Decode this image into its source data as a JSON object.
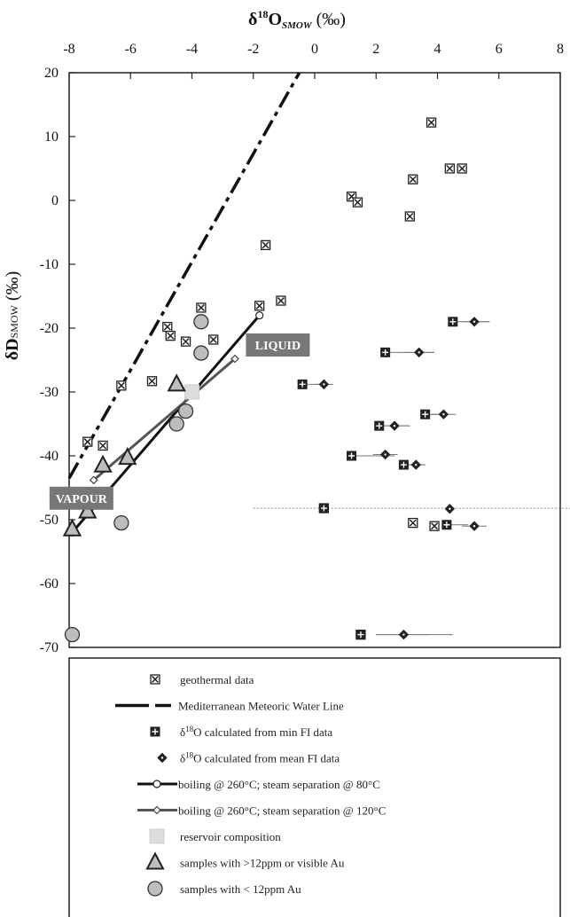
{
  "chart_data": {
    "type": "scatter",
    "xlabel": {
      "main": "δ",
      "sup": "18",
      "main2": "O",
      "sub": "SMOW",
      "unit": " (‰)"
    },
    "ylabel": {
      "main": "δD",
      "sub": "SMOW",
      "unit": " (‰)"
    },
    "xlim": [
      -8,
      8
    ],
    "ylim": [
      -70,
      20
    ],
    "xticks": [
      -8,
      -6,
      -4,
      -2,
      0,
      2,
      4,
      6,
      8
    ],
    "yticks": [
      20,
      10,
      0,
      -10,
      -20,
      -30,
      -40,
      -50,
      -60,
      -70
    ],
    "grid": false,
    "legend_position": "bottom",
    "colors": {
      "line": "#111111",
      "boiling_120": "#555555",
      "reservoir": "#dddddd",
      "circle_fill": "#bdbdbd",
      "triangle_fill": "#bdbdbd",
      "tag_bg": "#777777"
    },
    "annotations": [
      {
        "text": "LIQUID",
        "x": -1.2,
        "y": -22.5
      },
      {
        "text": "VAPOUR",
        "x": -7.6,
        "y": -46.5
      }
    ],
    "series": [
      {
        "name": "geothermal data",
        "marker": "square-x",
        "points": [
          [
            3.8,
            12.2
          ],
          [
            4.4,
            5
          ],
          [
            4.8,
            5
          ],
          [
            3.2,
            3.3
          ],
          [
            1.2,
            0.6
          ],
          [
            1.4,
            -0.3
          ],
          [
            3.1,
            -2.5
          ],
          [
            -1.6,
            -7
          ],
          [
            -1.1,
            -15.7
          ],
          [
            -1.8,
            -16.5
          ],
          [
            -3.7,
            -16.8
          ],
          [
            -4.8,
            -19.8
          ],
          [
            -4.7,
            -21.2
          ],
          [
            -4.2,
            -22.1
          ],
          [
            -3.3,
            -21.8
          ],
          [
            -5.3,
            -28.3
          ],
          [
            -6.3,
            -29
          ],
          [
            -7.4,
            -37.8
          ],
          [
            -6.9,
            -38.4
          ],
          [
            0.3,
            -48.2
          ],
          [
            3.2,
            -50.5
          ],
          [
            3.9,
            -51
          ],
          [
            1.5,
            -68
          ]
        ]
      },
      {
        "name": "δ18O calculated from min FI data",
        "marker": "square-plus",
        "points": [
          [
            4.5,
            -19
          ],
          [
            2.3,
            -23.8
          ],
          [
            -0.4,
            -28.8
          ],
          [
            3.6,
            -33.5
          ],
          [
            2.1,
            -35.3
          ],
          [
            1.2,
            -40
          ],
          [
            2.9,
            -41.4
          ],
          [
            4.3,
            -50.8
          ],
          [
            0.3,
            -48.2
          ],
          [
            1.5,
            -68
          ]
        ],
        "xerr": [
          [
            4.5,
            5.7
          ],
          [
            2.3,
            3.9
          ],
          [
            -0.4,
            0.4
          ],
          [
            3.6,
            4.4
          ],
          [
            2.1,
            3.1
          ],
          [
            1.2,
            2.6
          ],
          [
            2.9,
            3.6
          ],
          [
            4.3,
            5.0
          ],
          [
            -2,
            9
          ],
          [
            2,
            4.5
          ]
        ]
      },
      {
        "name": "δ18O calculated from mean FI data",
        "marker": "diamond-dot",
        "points": [
          [
            5.2,
            -19
          ],
          [
            3.4,
            -23.8
          ],
          [
            0.3,
            -28.8
          ],
          [
            4.2,
            -33.5
          ],
          [
            2.6,
            -35.3
          ],
          [
            2.3,
            -39.8
          ],
          [
            3.3,
            -41.4
          ],
          [
            4.4,
            -48.3
          ],
          [
            5.2,
            -51
          ],
          [
            2.9,
            -68
          ]
        ],
        "xerr": [
          [
            4.8,
            5.7
          ],
          [
            2.9,
            3.9
          ],
          [
            0.0,
            0.6
          ],
          [
            3.8,
            4.6
          ],
          [
            2.2,
            3.1
          ],
          [
            1.9,
            2.7
          ],
          [
            3.0,
            3.6
          ],
          [
            4.3,
            4.5
          ],
          [
            4.8,
            5.6
          ],
          [
            2.0,
            3.7
          ]
        ]
      },
      {
        "name": "samples with >12ppm or visible  Au",
        "marker": "triangle",
        "points": [
          [
            -4.5,
            -28.8
          ],
          [
            -6.9,
            -41.5
          ],
          [
            -6.1,
            -40.3
          ],
          [
            -7.4,
            -48.7
          ],
          [
            -7.9,
            -51.5
          ]
        ]
      },
      {
        "name": "samples with < 12ppm Au",
        "marker": "circle",
        "points": [
          [
            -3.7,
            -19
          ],
          [
            -3.7,
            -23.9
          ],
          [
            -4.2,
            -33
          ],
          [
            -4.5,
            -35
          ],
          [
            -6.3,
            -50.5
          ],
          [
            -7.9,
            -68
          ]
        ]
      },
      {
        "name": "reservoir composition",
        "marker": "square-filled",
        "points": [
          [
            -4,
            -30
          ]
        ]
      }
    ],
    "lines": [
      {
        "name": "Mediterranean Meteoric Water Line",
        "style": "dashdot",
        "points": [
          [
            -8,
            -43.5
          ],
          [
            -0.5,
            20
          ]
        ]
      },
      {
        "name": "boiling @ 260°C; steam separation @ 80°C",
        "style": "solid-circle-ends",
        "points": [
          [
            -7.9,
            -52
          ],
          [
            -1.8,
            -18
          ]
        ]
      },
      {
        "name": "boiling @ 260°C; steam separation @ 120°C",
        "style": "solid-diamond-ends",
        "points": [
          [
            -7.2,
            -43.8
          ],
          [
            -2.6,
            -24.8
          ]
        ]
      }
    ],
    "legend": [
      {
        "key": "square-x",
        "label": "geothermal data"
      },
      {
        "key": "dashdot",
        "label": "Mediterranean Meteoric Water Line"
      },
      {
        "key": "square-plus",
        "label": "δ18O calculated from min FI data",
        "pre": "δ",
        "sup": "18",
        "post": "O calculated from min FI data"
      },
      {
        "key": "diamond-dot",
        "label": "δ18O calculated from mean FI data",
        "pre": "δ",
        "sup": "18",
        "post": "O calculated from mean FI data"
      },
      {
        "key": "line-circle",
        "label": "boiling @ 260°C; steam separation @ 80°C"
      },
      {
        "key": "line-diamond",
        "label": "boiling @ 260°C; steam separation @ 120°C"
      },
      {
        "key": "square-filled",
        "label": "reservoir composition"
      },
      {
        "key": "triangle",
        "label": "samples with >12ppm or visible  Au"
      },
      {
        "key": "circle",
        "label": "samples with < 12ppm Au"
      }
    ]
  }
}
